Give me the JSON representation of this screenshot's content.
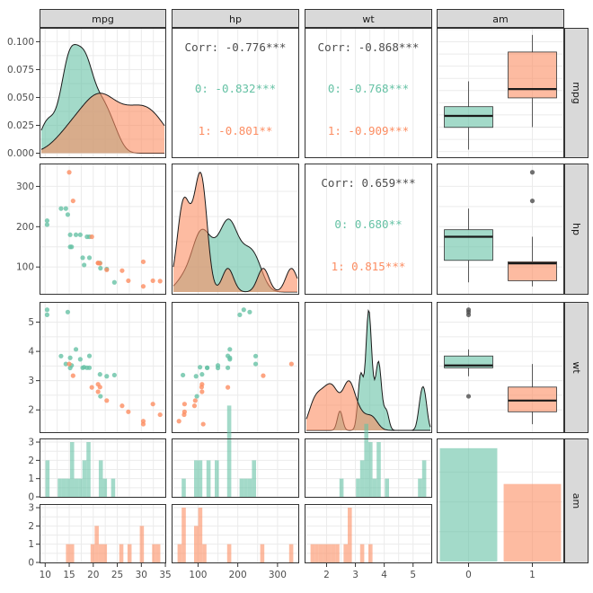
{
  "variables": [
    "mpg",
    "hp",
    "wt",
    "am"
  ],
  "colors": {
    "am0": "#66C2A5",
    "am1": "#FC8D62",
    "grid": "#EBEBEB",
    "strip": "#D9D9D9",
    "border": "#333333",
    "overall": "#4d4d4d"
  },
  "chart_data": {
    "type": "scatter",
    "title": "",
    "groups": [
      "0",
      "1"
    ],
    "axes": {
      "mpg": {
        "range": [
          9.2,
          34.8
        ],
        "ticks": [
          10,
          15,
          20,
          25,
          30,
          35
        ]
      },
      "hp": {
        "range": [
          38,
          350
        ],
        "ticks": [
          100,
          200,
          300
        ]
      },
      "wt": {
        "range": [
          1.3,
          5.6
        ],
        "ticks": [
          2,
          3,
          4,
          5
        ]
      },
      "am": {
        "categories": [
          "0",
          "1"
        ]
      }
    },
    "density_axis": {
      "range": [
        -0.002,
        0.11
      ],
      "ticks": [
        0.0,
        0.025,
        0.05,
        0.075,
        0.1
      ],
      "tick_labels": [
        "0.000",
        "0.025",
        "0.050",
        "0.075",
        "0.100"
      ]
    },
    "count_axis": {
      "range": [
        0,
        3.1
      ],
      "ticks": [
        0,
        1,
        2,
        3
      ]
    },
    "correlations": {
      "mpg_hp": {
        "overall": "Corr: -0.776***",
        "g0": "0: -0.832***",
        "g1": "1: -0.801**"
      },
      "mpg_wt": {
        "overall": "Corr: -0.868***",
        "g0": "0: -0.768***",
        "g1": "1: -0.909***"
      },
      "hp_wt": {
        "overall": "Corr: 0.659***",
        "g0": "0: 0.680**",
        "g1": "1: 0.815***"
      }
    },
    "series": [
      {
        "name": "0",
        "mpg": [
          21.4,
          18.7,
          18.1,
          14.3,
          24.4,
          22.8,
          19.2,
          17.8,
          16.4,
          17.3,
          15.2,
          10.4,
          10.4,
          14.7,
          21.5,
          15.5,
          15.2,
          13.3,
          19.2
        ],
        "hp": [
          110,
          175,
          105,
          245,
          62,
          95,
          123,
          123,
          180,
          180,
          180,
          205,
          215,
          230,
          97,
          150,
          150,
          245,
          175
        ],
        "wt": [
          3.215,
          3.44,
          3.46,
          3.57,
          3.19,
          3.15,
          3.44,
          3.44,
          4.07,
          3.73,
          3.78,
          5.25,
          5.424,
          5.345,
          2.465,
          3.52,
          3.435,
          3.84,
          3.845
        ]
      },
      {
        "name": "1",
        "mpg": [
          21.0,
          21.0,
          22.8,
          32.4,
          30.4,
          33.9,
          27.3,
          26.0,
          30.4,
          15.8,
          19.7,
          15.0,
          21.4
        ],
        "hp": [
          110,
          110,
          93,
          66,
          52,
          65,
          66,
          91,
          113,
          264,
          175,
          335,
          109
        ],
        "wt": [
          2.62,
          2.875,
          2.32,
          2.2,
          1.615,
          1.835,
          1.935,
          2.14,
          1.513,
          3.17,
          2.77,
          3.57,
          2.78
        ]
      }
    ],
    "bars": {
      "counts": [
        19,
        13
      ]
    }
  }
}
